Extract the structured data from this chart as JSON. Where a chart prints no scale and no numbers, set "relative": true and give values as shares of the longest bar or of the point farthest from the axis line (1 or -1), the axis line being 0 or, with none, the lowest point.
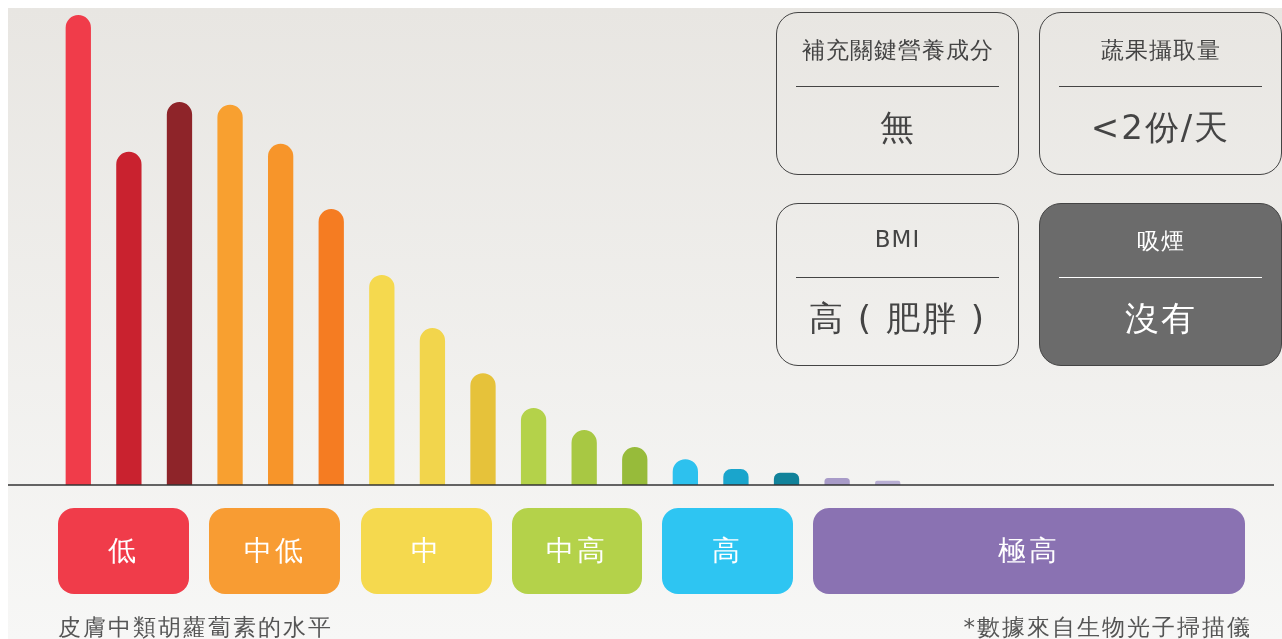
{
  "chart_data": [
    {
      "type": "bar",
      "relative": true,
      "xlabel": "皮膚中類胡蘿蔔素的水平",
      "categories": [
        null,
        null,
        null,
        null,
        null,
        null,
        null,
        null,
        null,
        null,
        null,
        null,
        null,
        null,
        null,
        null,
        null
      ],
      "values": [
        1,
        0.709,
        0.815,
        0.809,
        0.726,
        0.587,
        0.447,
        0.334,
        0.238,
        0.164,
        0.117,
        0.081,
        0.055,
        0.034,
        0.026,
        0.015,
        0.009
      ],
      "colors": [
        "#f03c4a",
        "#c9222f",
        "#8e2429",
        "#f8a030",
        "#f7952a",
        "#f57c22",
        "#f5d94e",
        "#f2d54c",
        "#e6c23a",
        "#b4d24a",
        "#a8c843",
        "#97bb3a",
        "#2dc1ee",
        "#1aa5cc",
        "#11829a",
        "#a89bc8",
        "#b8aed3"
      ],
      "annotations": [
        "低",
        "中低",
        "中",
        "中高",
        "高",
        "極高",
        "*數據來自生物光子掃描儀"
      ],
      "legend": false
    },
    {
      "type": "other",
      "annotations": [
        "補充關鍵營養成分",
        "無",
        "蔬果攝取量",
        "<2份/天",
        "BMI",
        "高 ( 肥胖 )",
        "吸煙",
        "沒有"
      ]
    }
  ]
}
